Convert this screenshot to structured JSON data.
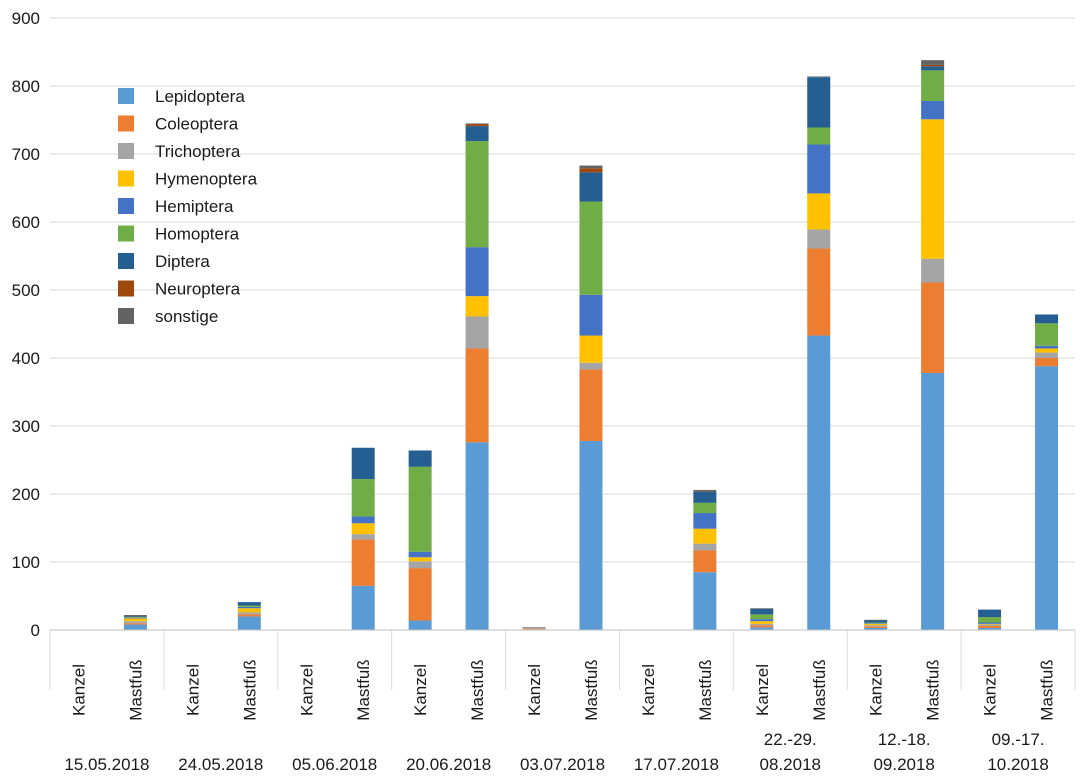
{
  "chart_data": {
    "type": "bar",
    "stacked": true,
    "title": "",
    "xlabel": "",
    "ylabel": "",
    "ylim": [
      0,
      900
    ],
    "yticks": [
      0,
      100,
      200,
      300,
      400,
      500,
      600,
      700,
      800,
      900
    ],
    "grid": true,
    "legend_position": "top-left",
    "groups": [
      {
        "label": [
          "15.05.2018"
        ],
        "categories": [
          "Kanzel",
          "Mastfuß"
        ]
      },
      {
        "label": [
          "24.05.2018"
        ],
        "categories": [
          "Kanzel",
          "Mastfuß"
        ]
      },
      {
        "label": [
          "05.06.2018"
        ],
        "categories": [
          "Kanzel",
          "Mastfuß"
        ]
      },
      {
        "label": [
          "20.06.2018"
        ],
        "categories": [
          "Kanzel",
          "Mastfuß"
        ]
      },
      {
        "label": [
          "03.07.2018"
        ],
        "categories": [
          "Kanzel",
          "Mastfuß"
        ]
      },
      {
        "label": [
          "17.07.2018"
        ],
        "categories": [
          "Kanzel",
          "Mastfuß"
        ]
      },
      {
        "label": [
          "22.-29.",
          "08.2018"
        ],
        "categories": [
          "Kanzel",
          "Mastfuß"
        ]
      },
      {
        "label": [
          "12.-18.",
          "09.2018"
        ],
        "categories": [
          "Kanzel",
          "Mastfuß"
        ]
      },
      {
        "label": [
          "09.-17.",
          "10.2018"
        ],
        "categories": [
          "Kanzel",
          "Mastfuß"
        ]
      }
    ],
    "series": [
      {
        "name": "Lepidoptera",
        "color": "#5b9bd5",
        "values": [
          0,
          8,
          0,
          20,
          0,
          65,
          14,
          276,
          1,
          278,
          0,
          85,
          4,
          433,
          3,
          378,
          3,
          388
        ]
      },
      {
        "name": "Coleoptera",
        "color": "#ed7d31",
        "values": [
          0,
          2,
          0,
          3,
          0,
          68,
          77,
          138,
          1,
          105,
          0,
          32,
          3,
          128,
          2,
          133,
          3,
          12
        ]
      },
      {
        "name": "Trichoptera",
        "color": "#a5a5a5",
        "values": [
          0,
          3,
          0,
          3,
          0,
          8,
          10,
          47,
          1,
          10,
          0,
          10,
          2,
          28,
          2,
          35,
          2,
          8
        ]
      },
      {
        "name": "Hymenoptera",
        "color": "#ffc000",
        "values": [
          0,
          4,
          0,
          6,
          0,
          16,
          6,
          30,
          0,
          40,
          0,
          22,
          4,
          53,
          2,
          205,
          1,
          6
        ]
      },
      {
        "name": "Hemiptera",
        "color": "#4472c4",
        "values": [
          0,
          1,
          0,
          2,
          0,
          10,
          8,
          72,
          0,
          60,
          0,
          23,
          3,
          72,
          1,
          27,
          2,
          4
        ]
      },
      {
        "name": "Homoptera",
        "color": "#70ad47",
        "values": [
          0,
          1,
          0,
          2,
          0,
          55,
          125,
          156,
          0,
          137,
          0,
          15,
          7,
          25,
          1,
          45,
          8,
          33
        ]
      },
      {
        "name": "Diptera",
        "color": "#255e91",
        "values": [
          0,
          1,
          0,
          5,
          0,
          46,
          24,
          22,
          0,
          43,
          0,
          17,
          8,
          74,
          3,
          6,
          11,
          13
        ]
      },
      {
        "name": "Neuroptera",
        "color": "#9e480e",
        "values": [
          0,
          0,
          0,
          0,
          0,
          0,
          0,
          3,
          0,
          6,
          0,
          1,
          0,
          0,
          0,
          2,
          0,
          0
        ]
      },
      {
        "name": "sonstige",
        "color": "#636363",
        "values": [
          0,
          2,
          0,
          0,
          0,
          0,
          0,
          1,
          1,
          4,
          0,
          1,
          1,
          1,
          1,
          7,
          0,
          0
        ]
      }
    ]
  }
}
